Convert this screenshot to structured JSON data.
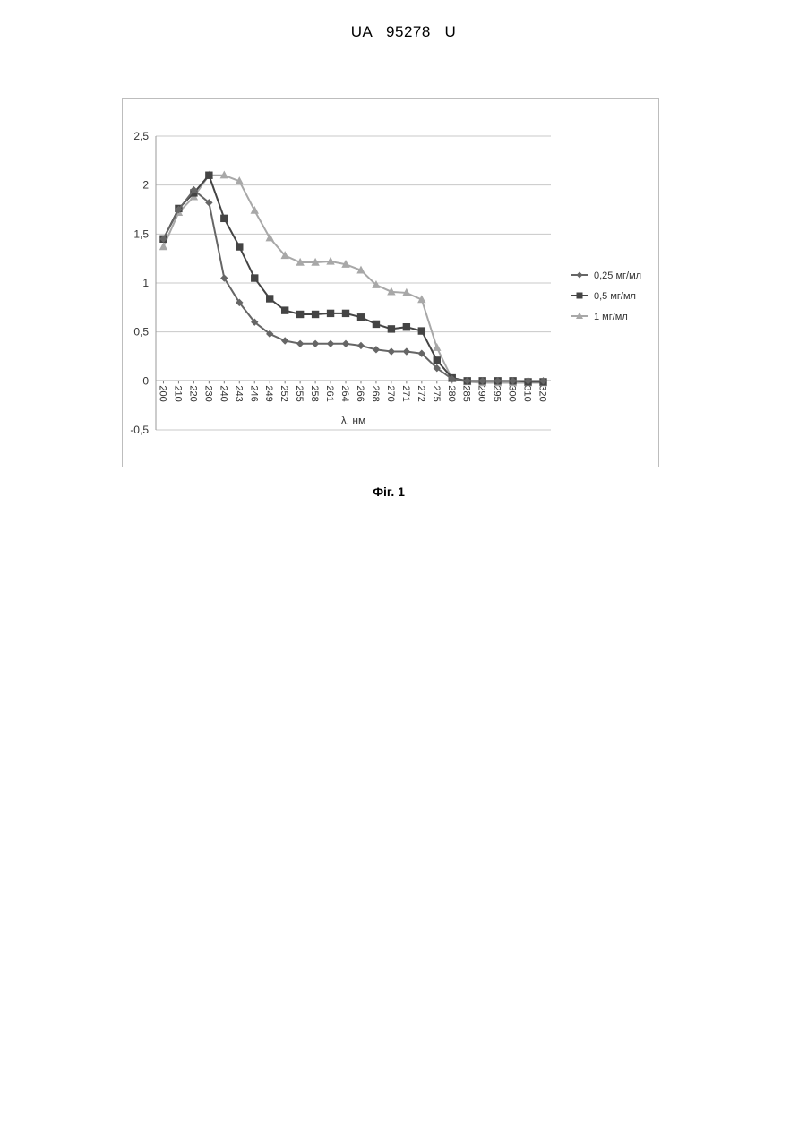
{
  "document": {
    "header": "UA   95278   U",
    "caption": "Фіг. 1"
  },
  "chart_data": {
    "type": "line",
    "title": "",
    "xlabel": "λ, нм",
    "ylabel": "",
    "ylim": [
      -0.5,
      2.5
    ],
    "yticks": [
      "2,5",
      "2",
      "1,5",
      "1",
      "0,5",
      "0",
      "-0,5"
    ],
    "grid": true,
    "legend_position": "right",
    "categories": [
      "200",
      "210",
      "220",
      "230",
      "240",
      "243",
      "246",
      "249",
      "252",
      "255",
      "258",
      "261",
      "264",
      "266",
      "268",
      "270",
      "271",
      "272",
      "275",
      "280",
      "285",
      "290",
      "295",
      "300",
      "310",
      "320"
    ],
    "series": [
      {
        "name": "0,25 мг/мл",
        "marker": "diamond",
        "color": "#666666",
        "values": [
          1.45,
          1.75,
          1.95,
          1.82,
          1.05,
          0.8,
          0.6,
          0.48,
          0.41,
          0.38,
          0.38,
          0.38,
          0.38,
          0.36,
          0.32,
          0.3,
          0.3,
          0.28,
          0.13,
          0.02,
          0.0,
          0.0,
          0.0,
          0.0,
          0.0,
          0.0
        ]
      },
      {
        "name": "0,5 мг/мл",
        "marker": "square",
        "color": "#444444",
        "values": [
          1.45,
          1.76,
          1.92,
          2.1,
          1.66,
          1.37,
          1.05,
          0.84,
          0.72,
          0.68,
          0.68,
          0.69,
          0.69,
          0.65,
          0.58,
          0.53,
          0.55,
          0.51,
          0.21,
          0.03,
          0.0,
          0.0,
          0.0,
          0.0,
          -0.01,
          -0.01
        ]
      },
      {
        "name": "1 мг/мл",
        "marker": "triangle",
        "color": "#a8a8a8",
        "values": [
          1.37,
          1.72,
          1.88,
          2.1,
          2.1,
          2.04,
          1.74,
          1.46,
          1.28,
          1.21,
          1.21,
          1.22,
          1.19,
          1.13,
          0.98,
          0.91,
          0.9,
          0.83,
          0.34,
          0.02,
          -0.01,
          -0.02,
          -0.02,
          -0.02,
          -0.02,
          -0.02
        ]
      }
    ]
  }
}
